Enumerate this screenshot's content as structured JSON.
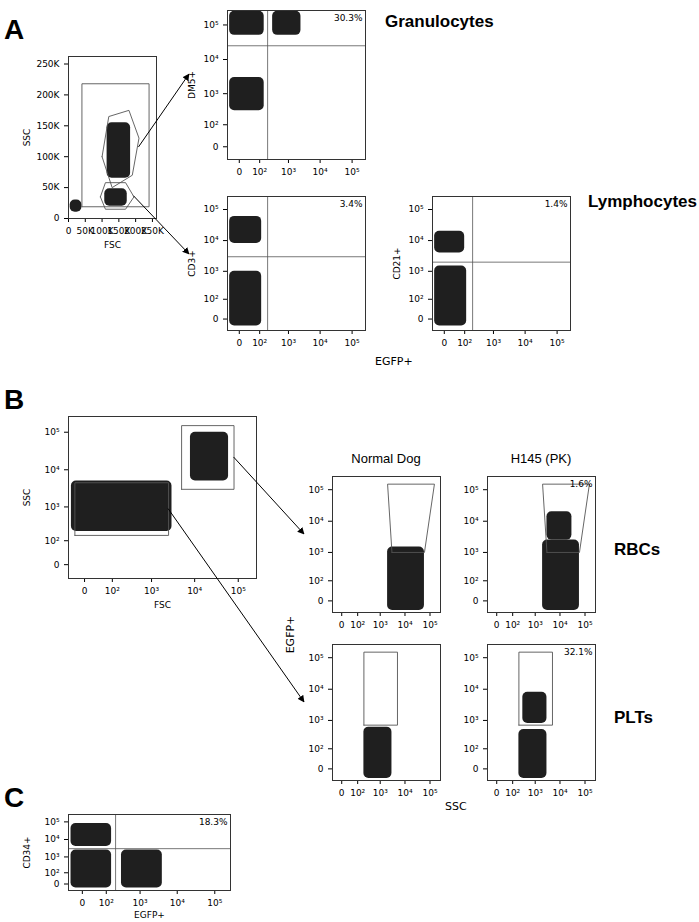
{
  "chart_data": [
    {
      "type": "scatter",
      "color": "#000000",
      "xlabel": "FSC",
      "ylabel": "SSC",
      "xlim": [
        0,
        262144
      ],
      "ylim": [
        0,
        262144
      ],
      "xticks": [
        0,
        {
          "value": 50000,
          "label": "50K"
        },
        {
          "value": 100000,
          "label": "100K"
        },
        {
          "value": 150000,
          "label": "150K"
        },
        {
          "value": 200000,
          "label": "200K"
        },
        {
          "value": 250000,
          "label": "250K"
        }
      ],
      "yticks": [
        0,
        {
          "value": 50000,
          "label": "50K"
        },
        {
          "value": 100000,
          "label": "100K"
        },
        {
          "value": 150000,
          "label": "150K"
        },
        {
          "value": 200000,
          "label": "200K"
        },
        {
          "value": 250000,
          "label": "250K"
        }
      ],
      "populations": [
        {
          "x": [
            115000,
            185000
          ],
          "y": [
            65000,
            155000
          ]
        },
        {
          "x": [
            108000,
            175000
          ],
          "y": [
            20000,
            48000
          ]
        },
        {
          "x": [
            5000,
            40000
          ],
          "y": [
            10000,
            30000
          ]
        }
      ],
      "gates": [
        {
          "x": [
            40000,
            240000,
            240000,
            40000
          ],
          "y": [
            19000,
            19000,
            218000,
            218000
          ]
        },
        {
          "x": [
            100000,
            130000,
            190000,
            210000,
            180000,
            120000
          ],
          "y": [
            100000,
            50000,
            70000,
            130000,
            175000,
            165000
          ]
        },
        {
          "x": [
            95000,
            110000,
            170000,
            195000,
            170000,
            110000
          ],
          "y": [
            35000,
            15000,
            15000,
            35000,
            58000,
            58000
          ]
        }
      ]
    },
    {
      "type": "scatter",
      "color": "#000000",
      "log": true,
      "ylabel": "DM5+",
      "xlim": [
        -40,
        262144
      ],
      "ylim": [
        -40,
        262144
      ],
      "xticks": [
        0,
        {
          "value": 100,
          "label": "10²"
        },
        {
          "value": 1000,
          "label": "10³"
        },
        {
          "value": 10000,
          "label": "10⁴"
        },
        {
          "value": 100000,
          "label": "10⁵"
        }
      ],
      "yticks": [
        0,
        {
          "value": 100,
          "label": "10²"
        },
        {
          "value": 1000,
          "label": "10³"
        },
        {
          "value": 10000,
          "label": "10⁴"
        },
        {
          "value": 100000,
          "label": "10⁵"
        }
      ],
      "populations": [
        {
          "x": [
            -30,
            150
          ],
          "y": [
            50000,
            250000
          ]
        },
        {
          "x": [
            300,
            2500
          ],
          "y": [
            50000,
            250000
          ]
        },
        {
          "x": [
            -30,
            150
          ],
          "y": [
            300,
            3000
          ]
        }
      ],
      "quadrant": {
        "x": 200,
        "y": 25000
      },
      "annotations": [
        "30.3%"
      ]
    },
    {
      "type": "scatter",
      "color": "#000000",
      "log": true,
      "ylabel": "CD3+",
      "xlim": [
        -40,
        262144
      ],
      "ylim": [
        -40,
        262144
      ],
      "xticks": [
        0,
        {
          "value": 100,
          "label": "10²"
        },
        {
          "value": 1000,
          "label": "10³"
        },
        {
          "value": 10000,
          "label": "10⁴"
        },
        {
          "value": 100000,
          "label": "10⁵"
        }
      ],
      "yticks": [
        0,
        {
          "value": 100,
          "label": "10²"
        },
        {
          "value": 1000,
          "label": "10³"
        },
        {
          "value": 10000,
          "label": "10⁴"
        },
        {
          "value": 100000,
          "label": "10⁵"
        }
      ],
      "populations": [
        {
          "x": [
            -30,
            120
          ],
          "y": [
            8000,
            60000
          ]
        },
        {
          "x": [
            -30,
            120
          ],
          "y": [
            -20,
            1000
          ]
        }
      ],
      "quadrant": {
        "x": 200,
        "y": 3000
      },
      "annotations": [
        "3.4%"
      ]
    },
    {
      "type": "scatter",
      "color": "#000000",
      "log": true,
      "ylabel": "CD21+",
      "xlim": [
        -40,
        262144
      ],
      "ylim": [
        -40,
        262144
      ],
      "xticks": [
        0,
        {
          "value": 100,
          "label": "10²"
        },
        {
          "value": 1000,
          "label": "10³"
        },
        {
          "value": 10000,
          "label": "10⁴"
        },
        {
          "value": 100000,
          "label": "10⁵"
        }
      ],
      "yticks": [
        0,
        {
          "value": 100,
          "label": "10²"
        },
        {
          "value": 1000,
          "label": "10³"
        },
        {
          "value": 10000,
          "label": "10⁴"
        },
        {
          "value": 100000,
          "label": "10⁵"
        }
      ],
      "populations": [
        {
          "x": [
            -30,
            120
          ],
          "y": [
            -20,
            1500
          ]
        },
        {
          "x": [
            -30,
            100
          ],
          "y": [
            4000,
            20000
          ]
        }
      ],
      "quadrant": {
        "x": 200,
        "y": 2000
      },
      "annotations": [
        "1.4%"
      ]
    },
    {
      "type": "scatter",
      "color": "#000000",
      "log": true,
      "xlabel": "FSC",
      "ylabel": "SSC",
      "xlim": [
        -40,
        262144
      ],
      "ylim": [
        -40,
        262144
      ],
      "xticks": [
        0,
        {
          "value": 100,
          "label": "10²"
        },
        {
          "value": 1000,
          "label": "10³"
        },
        {
          "value": 10000,
          "label": "10⁴"
        },
        {
          "value": 100000,
          "label": "10⁵"
        }
      ],
      "yticks": [
        0,
        {
          "value": 100,
          "label": "10²"
        },
        {
          "value": 1000,
          "label": "10³"
        },
        {
          "value": 10000,
          "label": "10⁴"
        },
        {
          "value": 100000,
          "label": "10⁵"
        }
      ],
      "populations": [
        {
          "x": [
            -30,
            3000
          ],
          "y": [
            200,
            5000
          ]
        },
        {
          "x": [
            8000,
            60000
          ],
          "y": [
            5000,
            100000
          ]
        }
      ],
      "gates": [
        {
          "x": [
            5000,
            80000,
            80000,
            5000
          ],
          "y": [
            3000,
            3000,
            150000,
            150000
          ]
        },
        {
          "x": [
            -20,
            2500,
            2500,
            -20
          ],
          "y": [
            150,
            150,
            4500,
            4500
          ]
        }
      ]
    },
    {
      "type": "scatter",
      "color": "#000000",
      "log": true,
      "title": "Normal Dog",
      "xlim": [
        -40,
        262144
      ],
      "ylim": [
        -40,
        262144
      ],
      "xticks": [
        0,
        {
          "value": 100,
          "label": "10²"
        },
        {
          "value": 1000,
          "label": "10³"
        },
        {
          "value": 10000,
          "label": "10⁴"
        },
        {
          "value": 100000,
          "label": "10⁵"
        }
      ],
      "yticks": [
        0,
        {
          "value": 100,
          "label": "10²"
        },
        {
          "value": 1000,
          "label": "10³"
        },
        {
          "value": 10000,
          "label": "10⁴"
        },
        {
          "value": 100000,
          "label": "10⁵"
        }
      ],
      "populations": [
        {
          "x": [
            2000,
            60000
          ],
          "y": [
            -30,
            1500
          ]
        }
      ],
      "gates": [
        {
          "x": [
            3000,
            60000,
            150000,
            2000
          ],
          "y": [
            1000,
            1000,
            150000,
            150000
          ]
        }
      ]
    },
    {
      "type": "scatter",
      "color": "#000000",
      "log": true,
      "title": "H145 (PK)",
      "xlim": [
        -40,
        262144
      ],
      "ylim": [
        -40,
        262144
      ],
      "xticks": [
        0,
        {
          "value": 100,
          "label": "10²"
        },
        {
          "value": 1000,
          "label": "10³"
        },
        {
          "value": 10000,
          "label": "10⁴"
        },
        {
          "value": 100000,
          "label": "10⁵"
        }
      ],
      "yticks": [
        0,
        {
          "value": 100,
          "label": "10²"
        },
        {
          "value": 1000,
          "label": "10³"
        },
        {
          "value": 10000,
          "label": "10⁴"
        },
        {
          "value": 100000,
          "label": "10⁵"
        }
      ],
      "populations": [
        {
          "x": [
            2000,
            60000
          ],
          "y": [
            -30,
            2500
          ]
        },
        {
          "x": [
            3000,
            30000
          ],
          "y": [
            2500,
            20000
          ]
        }
      ],
      "gates": [
        {
          "x": [
            3000,
            60000,
            150000,
            2000
          ],
          "y": [
            1000,
            1000,
            150000,
            150000
          ]
        }
      ],
      "annotations": [
        "1.6%"
      ]
    },
    {
      "type": "scatter",
      "color": "#000000",
      "log": true,
      "xlim": [
        -40,
        262144
      ],
      "ylim": [
        -40,
        262144
      ],
      "xticks": [
        0,
        {
          "value": 100,
          "label": "10²"
        },
        {
          "value": 1000,
          "label": "10³"
        },
        {
          "value": 10000,
          "label": "10⁴"
        },
        {
          "value": 100000,
          "label": "10⁵"
        }
      ],
      "yticks": [
        0,
        {
          "value": 100,
          "label": "10²"
        },
        {
          "value": 1000,
          "label": "10³"
        },
        {
          "value": 10000,
          "label": "10⁴"
        },
        {
          "value": 100000,
          "label": "10⁵"
        }
      ],
      "populations": [
        {
          "x": [
            200,
            3000
          ],
          "y": [
            -30,
            600
          ]
        }
      ],
      "gates": [
        {
          "x": [
            200,
            5000,
            5000,
            200
          ],
          "y": [
            700,
            700,
            150000,
            150000
          ]
        }
      ]
    },
    {
      "type": "scatter",
      "color": "#000000",
      "log": true,
      "xlim": [
        -40,
        262144
      ],
      "ylim": [
        -40,
        262144
      ],
      "xticks": [
        0,
        {
          "value": 100,
          "label": "10²"
        },
        {
          "value": 1000,
          "label": "10³"
        },
        {
          "value": 10000,
          "label": "10⁴"
        },
        {
          "value": 100000,
          "label": "10⁵"
        }
      ],
      "yticks": [
        0,
        {
          "value": 100,
          "label": "10²"
        },
        {
          "value": 1000,
          "label": "10³"
        },
        {
          "value": 10000,
          "label": "10⁴"
        },
        {
          "value": 100000,
          "label": "10⁵"
        }
      ],
      "populations": [
        {
          "x": [
            200,
            3000
          ],
          "y": [
            -30,
            500
          ]
        },
        {
          "x": [
            300,
            3000
          ],
          "y": [
            800,
            8000
          ]
        }
      ],
      "gates": [
        {
          "x": [
            200,
            5000,
            5000,
            200
          ],
          "y": [
            700,
            700,
            150000,
            150000
          ]
        }
      ],
      "annotations": [
        "32.1%"
      ]
    },
    {
      "type": "scatter",
      "color": "#000000",
      "log": true,
      "xlabel": "EGFP+",
      "ylabel": "CD34+",
      "xlim": [
        -40,
        262144
      ],
      "ylim": [
        -40,
        262144
      ],
      "xticks": [
        0,
        {
          "value": 100,
          "label": "10²"
        },
        {
          "value": 1000,
          "label": "10³"
        },
        {
          "value": 10000,
          "label": "10⁴"
        },
        {
          "value": 100000,
          "label": "10⁵"
        }
      ],
      "yticks": [
        0,
        {
          "value": 100,
          "label": "10²"
        },
        {
          "value": 1000,
          "label": "10³"
        },
        {
          "value": 10000,
          "label": "10⁴"
        },
        {
          "value": 100000,
          "label": "10⁵"
        }
      ],
      "populations": [
        {
          "x": [
            -30,
            150
          ],
          "y": [
            -20,
            2500
          ]
        },
        {
          "x": [
            300,
            4000
          ],
          "y": [
            -20,
            2500
          ]
        },
        {
          "x": [
            -30,
            150
          ],
          "y": [
            4000,
            80000
          ]
        }
      ],
      "quadrant": {
        "x": 200,
        "y": 3000
      },
      "annotations": [
        "18.3%"
      ]
    }
  ],
  "figure": {
    "letters": [
      "A",
      "B",
      "C"
    ],
    "row_labels": [
      "Granulocytes",
      "Lymphocytes",
      "RBCs",
      "PLTs"
    ],
    "shared_labels": [
      "EGFP+",
      "EGFP+",
      "SSC"
    ]
  }
}
